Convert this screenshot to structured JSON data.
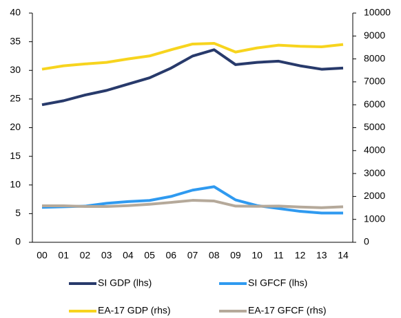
{
  "chart_data": {
    "type": "line",
    "categories": [
      "00",
      "01",
      "02",
      "03",
      "04",
      "05",
      "06",
      "07",
      "08",
      "09",
      "10",
      "11",
      "12",
      "13",
      "14"
    ],
    "ylim": [
      0,
      40
    ],
    "yticks": [
      0,
      5,
      10,
      15,
      20,
      25,
      30,
      35,
      40
    ],
    "y2lim": [
      0,
      10000
    ],
    "y2ticks": [
      0,
      1000,
      2000,
      3000,
      4000,
      5000,
      6000,
      7000,
      8000,
      9000,
      10000
    ],
    "series": [
      {
        "name": "SI GDP (lhs)",
        "color": "#283a6b",
        "values": [
          24.0,
          24.7,
          25.7,
          26.5,
          27.6,
          28.7,
          30.4,
          32.5,
          33.6,
          31.0,
          31.4,
          31.6,
          30.8,
          30.2,
          30.4
        ]
      },
      {
        "name": "SI GFCF (lhs)",
        "color": "#2f9af0",
        "values": [
          6.1,
          6.2,
          6.3,
          6.8,
          7.1,
          7.3,
          8.0,
          9.1,
          9.7,
          7.4,
          6.4,
          5.9,
          5.4,
          5.1,
          5.1
        ]
      },
      {
        "name": "EA-17 GDP (rhs)",
        "color": "#f7d41e",
        "axis": "y2",
        "values": [
          7550,
          7700,
          7780,
          7850,
          8000,
          8130,
          8400,
          8650,
          8680,
          8300,
          8480,
          8600,
          8550,
          8530,
          8630
        ]
      },
      {
        "name": "EA-17 GFCF (rhs)",
        "color": "#b5a99a",
        "axis": "y2",
        "values": [
          1590,
          1590,
          1560,
          1560,
          1600,
          1660,
          1740,
          1830,
          1800,
          1580,
          1570,
          1580,
          1540,
          1510,
          1550
        ]
      }
    ]
  }
}
